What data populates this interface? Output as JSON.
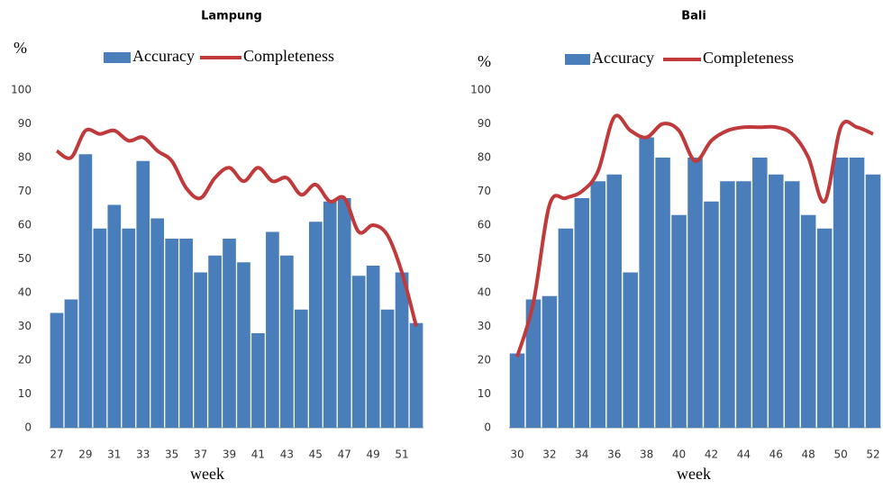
{
  "chart_data": [
    {
      "type": "bar",
      "title": "Lampung",
      "y_label": "%",
      "x_label": "week",
      "categories": [
        "27",
        null,
        "29",
        null,
        "31",
        null,
        "33",
        null,
        "35",
        null,
        "37",
        null,
        "39",
        null,
        "41",
        null,
        "43",
        null,
        "45",
        null,
        "47",
        null,
        "49",
        null,
        "51",
        null
      ],
      "series": [
        {
          "name": "Accuracy",
          "type": "bar",
          "color": "#4a7ebb",
          "values": [
            34,
            38,
            81,
            59,
            66,
            59,
            79,
            62,
            56,
            56,
            46,
            51,
            56,
            49,
            28,
            58,
            51,
            35,
            61,
            67,
            68,
            45,
            48,
            35,
            46,
            31
          ]
        },
        {
          "name": "Completeness",
          "type": "line",
          "color": "#c0393b",
          "values": [
            82,
            80,
            88,
            87,
            88,
            85,
            86,
            82,
            79,
            71,
            68,
            74,
            77,
            73,
            77,
            73,
            74,
            69,
            72,
            67,
            68,
            58,
            60,
            57,
            46,
            30
          ]
        }
      ],
      "ylim": [
        0,
        100
      ],
      "yticks": [
        0,
        10,
        20,
        30,
        40,
        50,
        60,
        70,
        80,
        90,
        100
      ]
    },
    {
      "type": "bar",
      "title": "Bali",
      "y_label": "%",
      "x_label": "week",
      "categories": [
        "30",
        null,
        "32",
        null,
        "34",
        null,
        "36",
        null,
        "38",
        null,
        "40",
        null,
        "42",
        null,
        "44",
        null,
        "46",
        null,
        "48",
        null,
        "50",
        null,
        "52"
      ],
      "series": [
        {
          "name": "Accuracy",
          "type": "bar",
          "color": "#4a7ebb",
          "values": [
            22,
            38,
            39,
            59,
            68,
            73,
            75,
            46,
            86,
            80,
            63,
            80,
            67,
            73,
            73,
            80,
            75,
            73,
            63,
            59,
            80,
            80,
            75
          ]
        },
        {
          "name": "Completeness",
          "type": "line",
          "color": "#c0393b",
          "values": [
            21,
            37,
            66,
            68,
            70,
            76,
            92,
            88,
            86,
            90,
            88,
            79,
            85,
            88,
            89,
            89,
            89,
            87,
            80,
            67,
            89,
            89,
            87
          ]
        }
      ],
      "ylim": [
        0,
        100
      ],
      "yticks": [
        0,
        10,
        20,
        30,
        40,
        50,
        60,
        70,
        80,
        90,
        100
      ]
    }
  ]
}
